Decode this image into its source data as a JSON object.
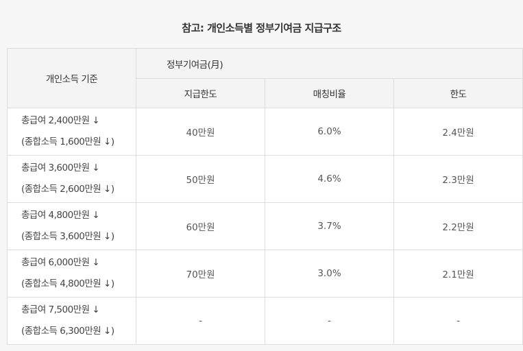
{
  "title": "참고: 개인소득별 정부기여금 지급구조",
  "table": {
    "header": {
      "criteria": "개인소득 기준",
      "group": "정부기여금(月)",
      "col_limit": "지급한도",
      "col_ratio": "매칭비율",
      "col_max": "한도"
    },
    "rows": [
      {
        "line1": "총급여 2,400만원 ↓",
        "line2": "(종합소득 1,600만원 ↓)",
        "limit": "40만원",
        "ratio": "6.0%",
        "max": "2.4만원"
      },
      {
        "line1": "총급여 3,600만원 ↓",
        "line2": "(종합소득 2,600만원 ↓)",
        "limit": "50만원",
        "ratio": "4.6%",
        "max": "2.3만원"
      },
      {
        "line1": "총급여 4,800만원 ↓",
        "line2": "(종합소득 3,600만원 ↓)",
        "limit": "60만원",
        "ratio": "3.7%",
        "max": "2.2만원"
      },
      {
        "line1": "총급여 6,000만원 ↓",
        "line2": "(종합소득 4,800만원 ↓)",
        "limit": "70만원",
        "ratio": "3.0%",
        "max": "2.1만원"
      },
      {
        "line1": "총급여 7,500만원 ↓",
        "line2": "(종합소득 6,300만원 ↓)",
        "limit": "-",
        "ratio": "-",
        "max": "-"
      }
    ]
  }
}
